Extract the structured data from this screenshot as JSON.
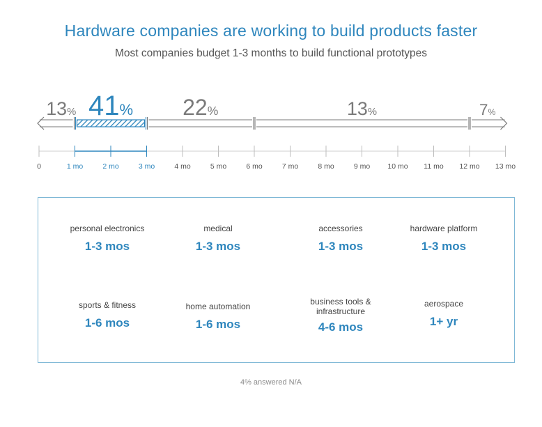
{
  "title": "Hardware companies are working to build products faster",
  "subtitle": "Most companies budget 1-3 months to build functional prototypes",
  "colors": {
    "accent": "#2e86bd",
    "gray": "#7a7a7a",
    "text": "#444444"
  },
  "chart_data": {
    "type": "bar",
    "title": "Hardware companies are working to build products faster",
    "subtitle": "Most companies budget 1-3 months to build functional prototypes",
    "xlim": [
      0,
      13
    ],
    "ticks": [
      {
        "value": 0,
        "label": "0",
        "highlight": false
      },
      {
        "value": 1,
        "label": "1 mo",
        "highlight": true
      },
      {
        "value": 2,
        "label": "2 mo",
        "highlight": true
      },
      {
        "value": 3,
        "label": "3 mo",
        "highlight": true
      },
      {
        "value": 4,
        "label": "4 mo",
        "highlight": false
      },
      {
        "value": 5,
        "label": "5 mo",
        "highlight": false
      },
      {
        "value": 6,
        "label": "6 mo",
        "highlight": false
      },
      {
        "value": 7,
        "label": "7 mo",
        "highlight": false
      },
      {
        "value": 8,
        "label": "8 mo",
        "highlight": false
      },
      {
        "value": 9,
        "label": "9 mo",
        "highlight": false
      },
      {
        "value": 10,
        "label": "10 mo",
        "highlight": false
      },
      {
        "value": 11,
        "label": "11 mo",
        "highlight": false
      },
      {
        "value": 12,
        "label": "12 mo",
        "highlight": false
      },
      {
        "value": 13,
        "label": "13 mo",
        "highlight": false
      }
    ],
    "segments": [
      {
        "start": 0,
        "end": 1,
        "value": 13,
        "open_left": true,
        "open_right": false,
        "highlight": false
      },
      {
        "start": 1,
        "end": 3,
        "value": 41,
        "open_left": false,
        "open_right": false,
        "highlight": true
      },
      {
        "start": 3,
        "end": 6,
        "value": 22,
        "open_left": false,
        "open_right": false,
        "highlight": false
      },
      {
        "start": 6,
        "end": 12,
        "value": 13,
        "open_left": false,
        "open_right": false,
        "highlight": false
      },
      {
        "start": 12,
        "end": 13,
        "value": 7,
        "open_left": false,
        "open_right": true,
        "highlight": false
      }
    ],
    "percent_symbol": "%"
  },
  "categories": [
    {
      "label": "personal electronics",
      "value": "1-3 mos"
    },
    {
      "label": "medical",
      "value": "1-3 mos"
    },
    {
      "label": "accessories",
      "value": "1-3 mos"
    },
    {
      "label": "hardware platform",
      "value": "1-3 mos"
    },
    {
      "label": "sports & fitness",
      "value": "1-6 mos"
    },
    {
      "label": "home automation",
      "value": "1-6 mos"
    },
    {
      "label": "business tools & infrastructure",
      "value": "4-6 mos"
    },
    {
      "label": "aerospace",
      "value": "1+ yr"
    }
  ],
  "footnote": "4% answered N/A"
}
